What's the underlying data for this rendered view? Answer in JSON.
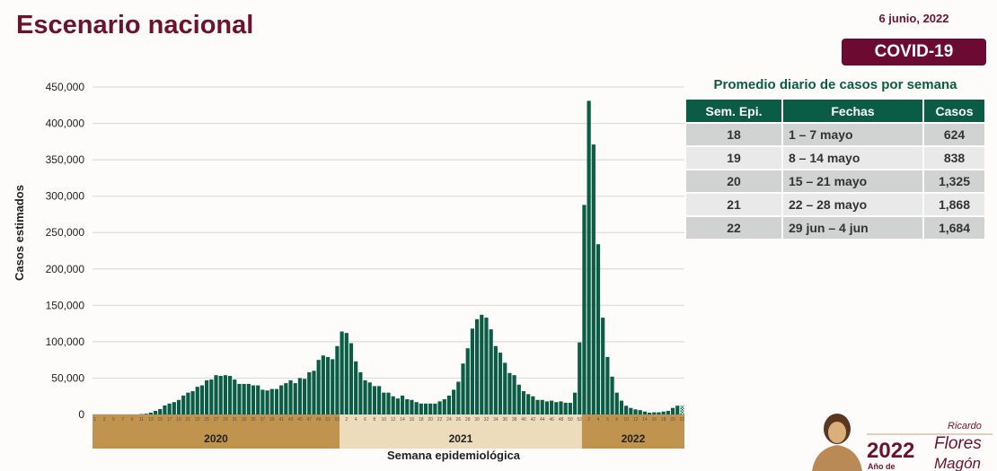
{
  "header": {
    "title": "Escenario nacional",
    "date": "6 junio, 2022",
    "badge": "COVID-19"
  },
  "table": {
    "title": "Promedio diario de casos por semana",
    "columns": [
      "Sem. Epi.",
      "Fechas",
      "Casos"
    ],
    "rows": [
      [
        "18",
        "1 – 7 mayo",
        "624"
      ],
      [
        "19",
        "8 – 14 mayo",
        "838"
      ],
      [
        "20",
        "15 – 21 mayo",
        "1,325"
      ],
      [
        "21",
        "22 – 28 mayo",
        "1,868"
      ],
      [
        "22",
        "29 jun – 4 jun",
        "1,684"
      ]
    ]
  },
  "logo": {
    "year": "2022",
    "line1": "Ricardo",
    "line2": "Flores",
    "line3": "Magón",
    "prefix": "Año de"
  },
  "colors": {
    "bar": "#0a5c45",
    "year_dark": "#c0934f",
    "year_light": "#ecdcbc",
    "brand": "#6d0a32"
  },
  "chart_data": {
    "type": "bar",
    "xlabel": "Semana epidemiológica",
    "ylabel": "Casos estimados",
    "ylim": [
      0,
      450000
    ],
    "yticks": [
      "0",
      "50,000",
      "100,000",
      "150,000",
      "200,000",
      "250,000",
      "300,000",
      "350,000",
      "400,000",
      "450,000"
    ],
    "grid": true,
    "years": [
      {
        "label": "2020",
        "weeks": 53,
        "tick_start": 1,
        "values": [
          0,
          0,
          0,
          0,
          0,
          0,
          0,
          0,
          0,
          0,
          500,
          1000,
          2500,
          5000,
          7500,
          12500,
          15000,
          17000,
          20000,
          26000,
          30000,
          32000,
          38000,
          40000,
          47000,
          48000,
          54000,
          53000,
          54000,
          53000,
          48000,
          42000,
          42000,
          42000,
          40000,
          40000,
          34000,
          33000,
          35000,
          35000,
          40000,
          43000,
          47000,
          43000,
          50000,
          49000,
          58000,
          60000,
          75000,
          81000,
          79000,
          76000,
          94000
        ]
      },
      {
        "label": "2021",
        "weeks": 52,
        "tick_start": 2,
        "values": [
          114000,
          112000,
          98000,
          73000,
          58000,
          47000,
          44000,
          39000,
          39000,
          30000,
          30000,
          25000,
          22000,
          26000,
          21000,
          20000,
          17000,
          15000,
          15000,
          15000,
          15000,
          18000,
          21000,
          26000,
          34000,
          45000,
          70000,
          91000,
          118000,
          131000,
          137000,
          133000,
          117000,
          94000,
          85000,
          71000,
          57000,
          54000,
          41000,
          32000,
          28000,
          25000,
          20000,
          20000,
          18000,
          19000,
          17000,
          18000,
          16000,
          16000,
          30000,
          99000
        ]
      },
      {
        "label": "2022",
        "weeks": 22,
        "tick_start": 2,
        "values": [
          288000,
          431000,
          371000,
          234000,
          133000,
          79000,
          52000,
          30000,
          19000,
          12000,
          9000,
          7000,
          6000,
          4000,
          2500,
          3000,
          3000,
          4000,
          5000,
          9000,
          12000,
          12000
        ]
      }
    ],
    "note": "last week (2022-22) drawn hatched as preliminary"
  }
}
